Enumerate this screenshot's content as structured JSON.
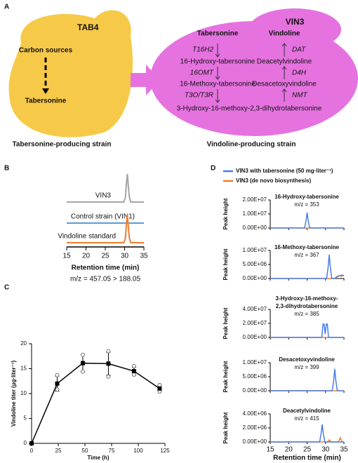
{
  "panel_labels": [
    "A",
    "B",
    "C",
    "D"
  ],
  "diagram": {
    "tab4": {
      "title": "TAB4",
      "source": "Carbon sources",
      "product": "Tabersonine",
      "caption": "Tabersonine-producing strain"
    },
    "vin3": {
      "title": "VIN3",
      "left_heading": "Tabersonine",
      "right_heading": "Vindoline",
      "left_enzymes": [
        "T16H2",
        "16OMT",
        "T3O/T3R"
      ],
      "left_products": [
        "16-Hydroxy-tabersonine",
        "16-Methoxy-tabersonine"
      ],
      "end_product": "3-Hydroxy-16-methoxy-2,3-dihydrotabersonine",
      "right_enzymes": [
        "DAT",
        "D4H",
        "NMT"
      ],
      "right_products": [
        "Deacetylvindoline",
        "Desacetoxyvindoline"
      ],
      "caption": "Vindoline-producing strain"
    }
  },
  "chart_data": [
    {
      "type": "chromatogram",
      "x_label": "Retention time (min)",
      "note": "m/z = 457.05 > 188.05",
      "xlim": [
        15,
        35
      ],
      "xticks": [
        15,
        20,
        25,
        30,
        35
      ],
      "x": [
        15,
        29.8,
        30.2,
        30.5,
        30.7,
        30.9,
        31.2,
        31.6,
        35
      ],
      "series": [
        {
          "name": "VIN3",
          "color": "#a5a5a5",
          "values": [
            0,
            0,
            0.15,
            0.7,
            1,
            0.7,
            0.2,
            0,
            0
          ]
        },
        {
          "name": "Control strain (VIN1)",
          "color": "#5b9bd5",
          "values": [
            0,
            0,
            0,
            0,
            0,
            0,
            0,
            0,
            0
          ]
        },
        {
          "name": "Vindoline standard",
          "color": "#ed7d31",
          "values": [
            0,
            0,
            0.15,
            0.7,
            1,
            0.7,
            0.2,
            0,
            0
          ]
        }
      ]
    },
    {
      "type": "line",
      "y_label": "Vindoline titer (µg·liter⁻¹)",
      "x_label": "Time (h)",
      "color": "#000000",
      "xlim": [
        0,
        125
      ],
      "xticks": [
        0,
        25,
        50,
        75,
        100,
        125
      ],
      "ylim": [
        0,
        20
      ],
      "yticks": [
        0,
        5,
        10,
        15,
        20
      ],
      "x": [
        0,
        24,
        48,
        72,
        96,
        120
      ],
      "values": [
        0,
        12,
        16.1,
        16,
        14.5,
        11
      ],
      "errors": [
        0,
        1.5,
        1.7,
        2.3,
        0.8,
        0.6
      ],
      "replicates": [
        [
          0,
          0,
          0
        ],
        [
          10.8,
          12,
          13.7
        ],
        [
          14.4,
          16.2,
          17.8
        ],
        [
          13.4,
          16.1,
          18.5
        ],
        [
          13.8,
          14.5,
          15.5
        ],
        [
          10.4,
          11,
          11.7
        ]
      ]
    },
    {
      "type": "small-multiples",
      "y_label": "Peak height",
      "x_label": "Retention time (min)",
      "xlim": [
        15,
        35
      ],
      "xticks": [
        15,
        20,
        25,
        30,
        35
      ],
      "series": [
        {
          "name": "VIN3 with tabersonine (50 mg·liter⁻¹)",
          "color": "#4a7ee6"
        },
        {
          "name": "VIN3 (de novo biosynthesis)",
          "color": "#ed7d31"
        }
      ],
      "panels": [
        {
          "title_lines": [
            "16-Hydroxy-tabersonine"
          ],
          "mz": "m/z = 353",
          "ylim": [
            0,
            20000000
          ],
          "yticks": [
            {
              "value": 0,
              "label": "0.00E+00"
            },
            {
              "value": 10000000,
              "label": "1.00E+07"
            },
            {
              "value": 20000000,
              "label": "2.00E+07"
            }
          ],
          "x": [
            15,
            24.3,
            24.7,
            25,
            25.3,
            25.7,
            35
          ],
          "series": [
            {
              "values": [
                0,
                0,
                5000000,
                11000000,
                5000000,
                0,
                0
              ]
            },
            {
              "values": [
                0,
                0,
                0,
                0,
                0,
                0,
                0
              ]
            }
          ]
        },
        {
          "title_lines": [
            "16-Methoxy-tabersonine"
          ],
          "mz": "m/z = 367",
          "ylim": [
            0,
            10000000
          ],
          "yticks": [
            {
              "value": 0,
              "label": "0.00E+00"
            },
            {
              "value": 5000000,
              "label": "5.00E+06"
            },
            {
              "value": 10000000,
              "label": "1.00E+07"
            }
          ],
          "x": [
            15,
            30.3,
            30.7,
            31,
            31.3,
            31.7,
            32.5,
            33.2,
            33.8,
            34.3,
            35
          ],
          "series": [
            {
              "values": [
                0,
                0,
                4000000,
                8500000,
                4000000,
                0,
                0,
                800000,
                1000000,
                1200000,
                1000000
              ]
            },
            {
              "values": [
                0,
                0,
                0,
                0,
                0,
                0,
                0,
                600000,
                1000000,
                800000,
                1200000
              ]
            }
          ]
        },
        {
          "title_lines": [
            "3-Hydroxy-16-methoxy-",
            "2,3-dihydrotabersonine"
          ],
          "mz": "m/z = 385",
          "ylim": [
            0,
            40000000
          ],
          "yticks": [
            {
              "value": 0,
              "label": "0.00E+00"
            },
            {
              "value": 20000000,
              "label": "2.00E+07"
            },
            {
              "value": 40000000,
              "label": "4.00E+07"
            }
          ],
          "x": [
            15,
            29,
            29.3,
            29.6,
            29.9,
            30.2,
            30.5,
            30.8,
            31.1,
            35
          ],
          "series": [
            {
              "values": [
                0,
                0,
                19000000,
                19000000,
                5000000,
                19000000,
                19000000,
                0,
                0,
                0
              ]
            },
            {
              "values": [
                0,
                0,
                0,
                0,
                0,
                0,
                0,
                0,
                0,
                0
              ]
            }
          ]
        },
        {
          "title_lines": [
            "Desacetoxyvindoline"
          ],
          "mz": "m/z = 399",
          "ylim": [
            0,
            10000000
          ],
          "yticks": [
            {
              "value": 0,
              "label": "0.00E+00"
            },
            {
              "value": 5000000,
              "label": "5.00E+06"
            },
            {
              "value": 10000000,
              "label": "1.00E+07"
            }
          ],
          "x": [
            15,
            31.8,
            32.2,
            32.5,
            32.8,
            33.2,
            35
          ],
          "series": [
            {
              "values": [
                0,
                0,
                3500000,
                7800000,
                3500000,
                0,
                0
              ]
            },
            {
              "values": [
                0,
                0,
                0,
                0,
                0,
                0,
                0
              ]
            }
          ]
        },
        {
          "title_lines": [
            "Deacetylvindoline"
          ],
          "mz": "m/z = 415",
          "ylim": [
            0,
            4000000
          ],
          "yticks": [
            {
              "value": 0,
              "label": "0.00E+00"
            },
            {
              "value": 2000000,
              "label": "2.00E+06"
            },
            {
              "value": 4000000,
              "label": "4.00E+06"
            }
          ],
          "x": [
            15,
            28.4,
            28.8,
            29.1,
            29.4,
            29.8,
            30.5,
            31,
            31.5,
            33.5,
            34,
            34.5,
            35
          ],
          "series": [
            {
              "values": [
                0,
                0,
                1200000,
                2500000,
                1200000,
                0,
                0,
                0,
                0,
                0,
                0,
                0,
                0
              ]
            },
            {
              "values": [
                0,
                0,
                0,
                0,
                0,
                0,
                0,
                300000,
                0,
                0,
                600000,
                0,
                0
              ]
            }
          ]
        }
      ]
    }
  ]
}
